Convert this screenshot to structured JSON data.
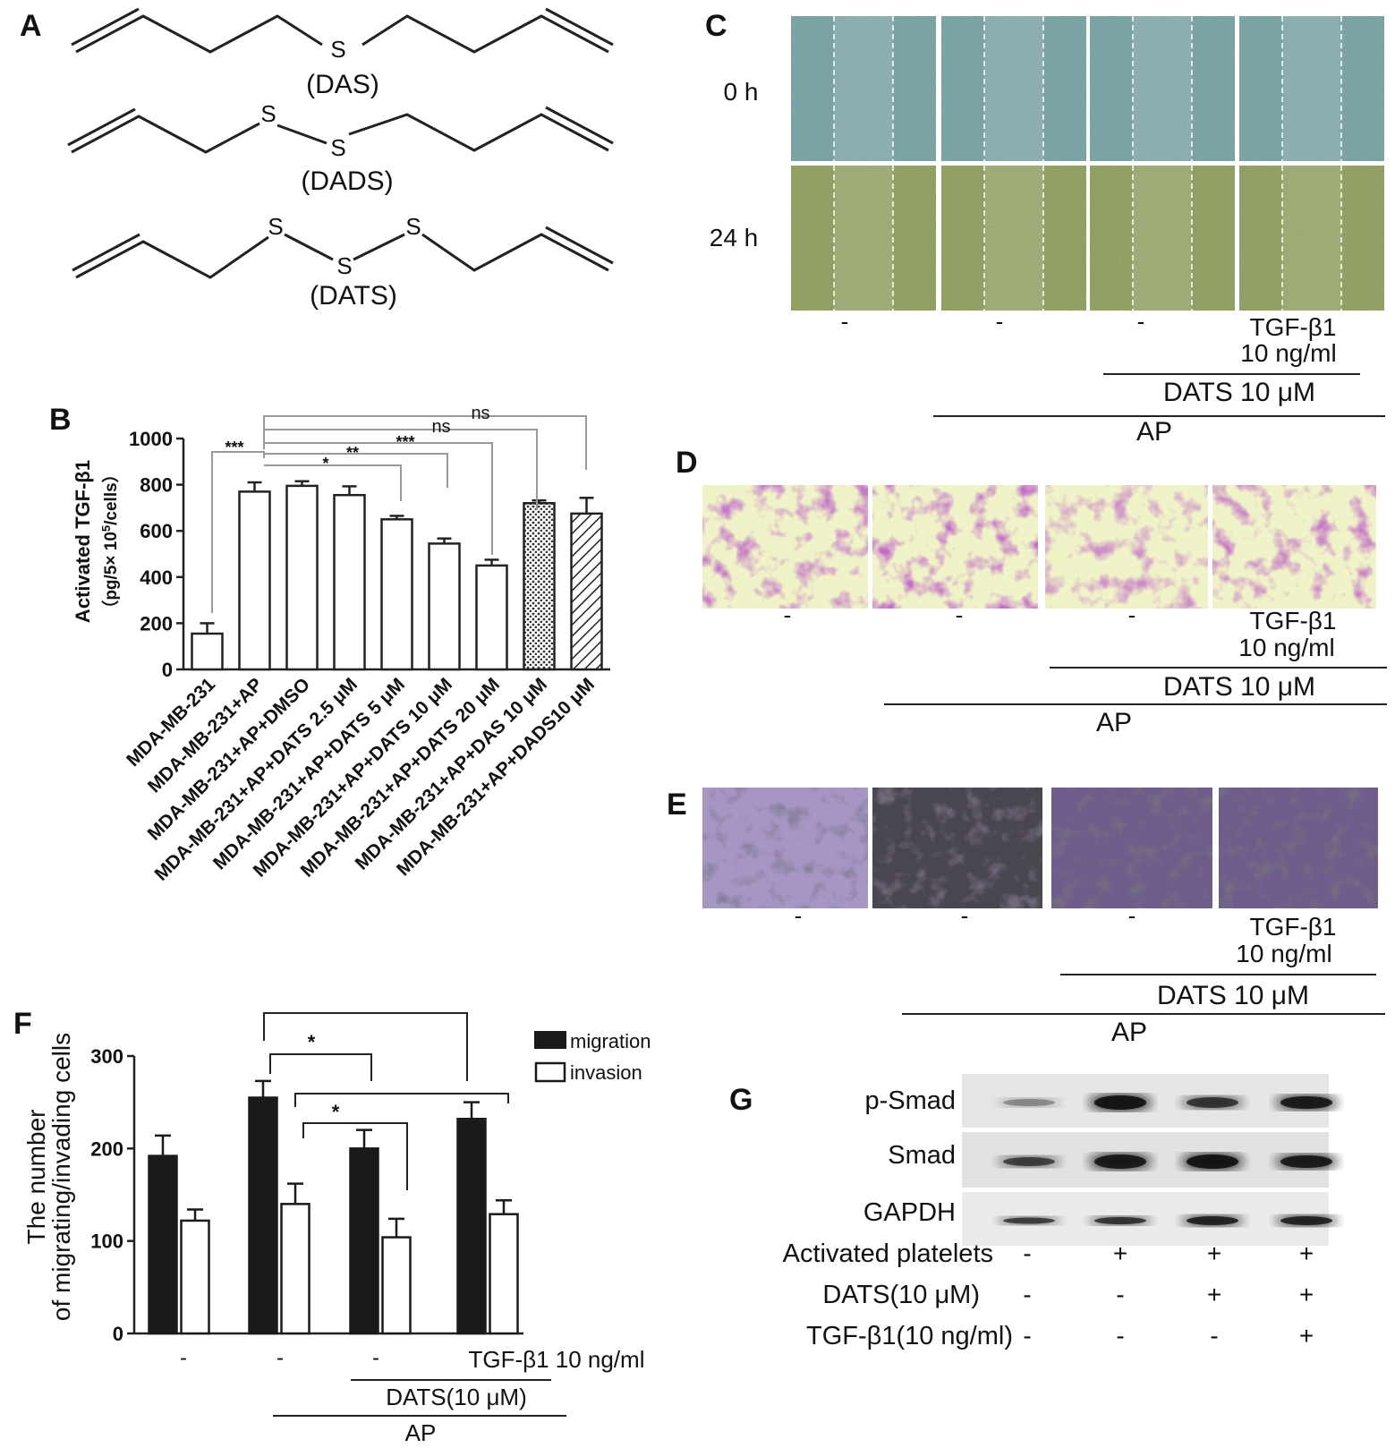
{
  "panels": {
    "A": {
      "label": "A",
      "compounds": [
        {
          "label": "(DAS)",
          "sulfur": [
            "S"
          ]
        },
        {
          "label": "(DADS)",
          "sulfur": [
            "S",
            "S"
          ]
        },
        {
          "label": "(DATS)",
          "sulfur": [
            "S",
            "S",
            "S"
          ]
        }
      ]
    },
    "B": {
      "label": "B",
      "ylabel_main": "Activated TGF-β1",
      "ylabel_unit_a": "（pg/5× 10",
      "ylabel_unit_sup": "5",
      "ylabel_unit_b": "/cells）",
      "significance": [
        "***",
        "*",
        "**",
        "***",
        "ns",
        "ns"
      ]
    },
    "C": {
      "label": "C",
      "rows": [
        "0 h",
        "24 h"
      ],
      "conditions": [
        "-",
        "-",
        "-",
        "TGF-β1",
        "10 ng/ml"
      ],
      "dats": "DATS 10 μM",
      "ap": "AP"
    },
    "D": {
      "label": "D",
      "conditions": [
        "-",
        "-",
        "-",
        "TGF-β1",
        "10 ng/ml"
      ],
      "dats": "DATS 10 μM",
      "ap": "AP"
    },
    "E": {
      "label": "E",
      "conditions": [
        "-",
        "-",
        "-",
        "TGF-β1",
        "10 ng/ml"
      ],
      "dats": "DATS 10 μM",
      "ap": "AP"
    },
    "F": {
      "label": "F",
      "ylabel_1": "The number",
      "ylabel_2": "of migrating/invading cells",
      "legend": [
        "migration",
        "invasion"
      ],
      "significance": [
        "*",
        "*"
      ],
      "conditions": [
        "-",
        "-",
        "-",
        "TGF-β1 10 ng/ml"
      ],
      "dats": "DATS(10 μM)",
      "ap": "AP"
    },
    "G": {
      "label": "G",
      "bands": [
        "p-Smad",
        "Smad",
        "GAPDH"
      ],
      "rows": [
        {
          "label": "Activated platelets",
          "values": [
            "-",
            "+",
            "+",
            "+"
          ]
        },
        {
          "label": "DATS(10 μM)",
          "values": [
            "-",
            "-",
            "+",
            "+"
          ]
        },
        {
          "label": "TGF-β1(10 ng/ml)",
          "values": [
            "-",
            "-",
            "-",
            "+"
          ]
        }
      ]
    }
  },
  "chart_data": [
    {
      "panel": "B",
      "type": "bar",
      "categories": [
        "MDA-MB-231",
        "MDA-MB-231+AP",
        "MDA-MB-231+AP+DMSO",
        "MDA-MB-231+AP+DATS 2.5 μM",
        "MDA-MB-231+AP+DATS 5 μM",
        "MDA-MB-231+AP+DATS 10 μM",
        "MDA-MB-231+AP+DATS 20 μM",
        "MDA-MB-231+AP+DAS 10 μM",
        "MDA-MB-231+AP+DADS10 μM"
      ],
      "values": [
        155,
        770,
        795,
        755,
        650,
        545,
        450,
        720,
        675
      ],
      "errors": [
        45,
        40,
        20,
        38,
        15,
        22,
        25,
        12,
        68
      ],
      "patterns": [
        "none",
        "none",
        "none",
        "none",
        "none",
        "none",
        "none",
        "dots",
        "hatch"
      ],
      "ylabel": "Activated TGF-β1 (pg/5× 10^5/cells)",
      "ylim": [
        0,
        1000
      ],
      "yticks": [
        0,
        200,
        400,
        600,
        800,
        1000
      ]
    },
    {
      "panel": "F",
      "type": "bar",
      "categories": [
        "-",
        "-",
        "-",
        "TGF-β1 10 ng/ml"
      ],
      "series": [
        {
          "name": "migration",
          "values": [
            192,
            255,
            200,
            232
          ],
          "errors": [
            22,
            18,
            20,
            18
          ]
        },
        {
          "name": "invasion",
          "values": [
            122,
            140,
            104,
            129
          ],
          "errors": [
            12,
            22,
            20,
            15
          ]
        }
      ],
      "ylim": [
        0,
        300
      ],
      "yticks": [
        0,
        100,
        200,
        300
      ],
      "legend_position": "top-right"
    }
  ],
  "colors": {
    "scratch_0h": "#6f9ea0",
    "scratch_24h": "#8a9a52",
    "transwell_bg": "#f0f2c8",
    "transwell_stain": "#8a2a92",
    "invasion_bg": "#8d7aa8",
    "invasion_dark": "#2f2a38"
  }
}
